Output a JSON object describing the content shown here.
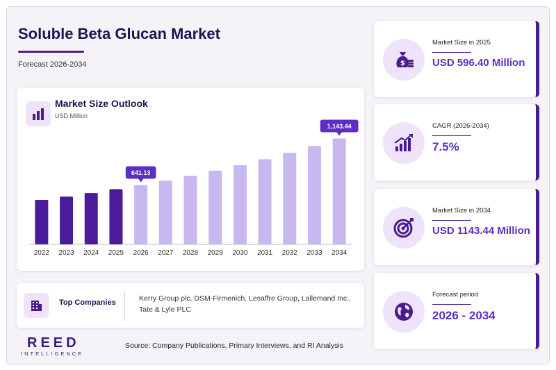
{
  "header": {
    "title": "Soluble Beta Glucan Market",
    "subtitle": "Forecast 2026-2034"
  },
  "chart_panel": {
    "title": "Market Size Outlook",
    "unit": "USD Million",
    "icon": "bar-chart-icon"
  },
  "chart_data": {
    "type": "bar",
    "title": "Market Size Outlook",
    "ylabel": "USD Million",
    "categories": [
      "2022",
      "2023",
      "2024",
      "2025",
      "2026",
      "2027",
      "2028",
      "2029",
      "2030",
      "2031",
      "2032",
      "2033",
      "2034"
    ],
    "values": [
      480,
      516,
      554,
      596.4,
      641.13,
      689,
      741,
      796,
      856,
      920,
      989,
      1063,
      1143.44
    ],
    "ylim": [
      0,
      1200
    ],
    "actual_color": "#4a1c9c",
    "forecast_color": "#c7b8f0",
    "forecast_start": "2026",
    "data_labels": [
      {
        "category": "2026",
        "text": "641.13"
      },
      {
        "category": "2034",
        "text": "1,143.44"
      }
    ],
    "label_color": "#5b2fc2"
  },
  "companies": {
    "title": "Top Companies",
    "text": "Kerry Group plc, DSM-Firmenich, Lesaffre Group, Lallemand Inc., Tate & Lyle PLC",
    "icon": "building-icon"
  },
  "logo": {
    "name": "REED",
    "tagline": "INTELLIGENCE"
  },
  "source": "Source: Company Publications, Primary Interviews, and RI Analysis",
  "cards": [
    {
      "label": "Market Size in 2025",
      "value": "USD 596.40 Million",
      "icon": "money-bag-icon"
    },
    {
      "label": "CAGR (2026-2034)",
      "value": "7.5%",
      "icon": "growth-chart-icon"
    },
    {
      "label": "Market Size in 2034",
      "value": "USD 1143.44 Million",
      "icon": "target-icon"
    },
    {
      "label": "Forecast period",
      "value": "2026 - 2034",
      "icon": "globe-icon"
    }
  ],
  "colors": {
    "accent": "#4a1c8f",
    "value_text": "#5b2fc2",
    "icon_bg": "#eee3f8"
  }
}
